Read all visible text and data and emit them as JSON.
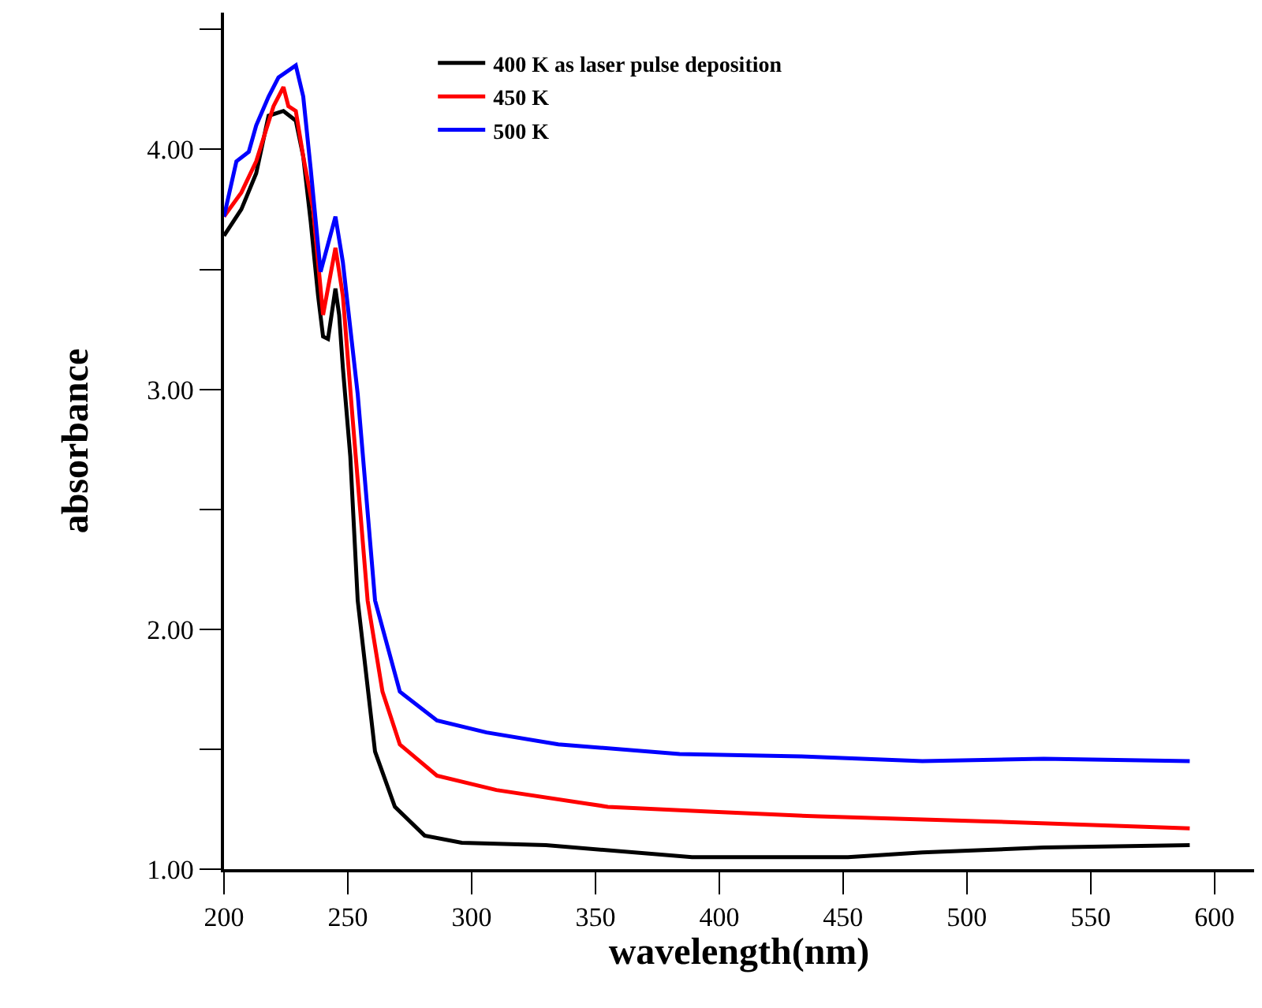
{
  "chart_data": {
    "type": "line",
    "xlabel": "wavelength(nm)",
    "ylabel": "absorbance",
    "xlim": [
      200,
      616
    ],
    "xticks": [
      200,
      250,
      300,
      350,
      400,
      450,
      500,
      550,
      600
    ],
    "ylim": [
      1.0,
      4.57
    ],
    "yticks": [
      {
        "value": 1,
        "label": "1.00"
      },
      {
        "value": 1.5,
        "label": null
      },
      {
        "value": 2,
        "label": "2.00"
      },
      {
        "value": 2.5,
        "label": null
      },
      {
        "value": 3,
        "label": "3.00"
      },
      {
        "value": 3.5,
        "label": null
      },
      {
        "value": 4,
        "label": "4.00"
      },
      {
        "value": 4.5,
        "label": null
      }
    ],
    "legend": "top",
    "marker": "none",
    "line_style": "solid",
    "series": [
      {
        "name": "400 K as laser pulse deposition",
        "color": "#000000",
        "x": [
          200,
          207,
          213,
          218,
          224,
          229,
          232,
          235,
          238,
          240,
          242,
          245,
          246.5,
          248,
          251,
          254,
          261,
          269,
          281,
          296,
          330,
          389,
          452,
          482,
          531,
          590
        ],
        "values": [
          3.64,
          3.75,
          3.9,
          4.14,
          4.16,
          4.12,
          3.97,
          3.7,
          3.39,
          3.22,
          3.21,
          3.42,
          3.31,
          3.09,
          2.72,
          2.12,
          1.49,
          1.26,
          1.14,
          1.11,
          1.1,
          1.05,
          1.05,
          1.07,
          1.09,
          1.1
        ]
      },
      {
        "name": "450 K",
        "color": "#ff0000",
        "x": [
          200,
          207,
          213,
          220,
          224,
          226,
          229,
          232,
          236,
          240,
          245,
          248,
          252,
          258,
          264,
          271,
          286,
          310,
          355,
          396,
          440,
          506,
          590
        ],
        "values": [
          3.72,
          3.82,
          3.95,
          4.18,
          4.26,
          4.18,
          4.16,
          3.97,
          3.75,
          3.31,
          3.59,
          3.39,
          2.87,
          2.12,
          1.74,
          1.52,
          1.39,
          1.33,
          1.26,
          1.24,
          1.22,
          1.2,
          1.17
        ]
      },
      {
        "name": "500 K",
        "color": "#0000ff",
        "x": [
          200,
          205,
          210,
          213,
          218,
          222,
          229,
          232,
          235,
          239,
          245,
          248,
          254,
          261,
          271,
          286,
          306,
          335,
          384,
          433,
          482,
          531,
          590
        ],
        "values": [
          3.72,
          3.95,
          3.99,
          4.1,
          4.22,
          4.3,
          4.35,
          4.22,
          3.92,
          3.49,
          3.72,
          3.53,
          2.98,
          2.12,
          1.74,
          1.62,
          1.57,
          1.52,
          1.48,
          1.47,
          1.45,
          1.46,
          1.45
        ]
      }
    ]
  }
}
